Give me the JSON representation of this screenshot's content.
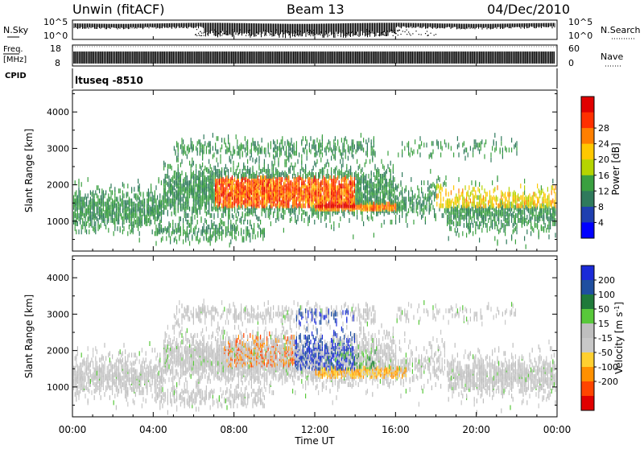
{
  "header": {
    "station": "Unwin (fitACF)",
    "beam": "Beam 13",
    "date": "04/Dec/2010"
  },
  "noise_panel": {
    "left_label": "N.Sky",
    "right_label": "N.Search",
    "ticks": [
      "10^5",
      "10^0"
    ]
  },
  "freq_panel": {
    "left_label_1": "Freq.",
    "left_label_2": "[MHz]",
    "left_ticks": [
      "18",
      "8"
    ],
    "right_label": "Nave",
    "right_ticks": [
      "60",
      "0"
    ],
    "cpid_label": "CPID"
  },
  "program_label": "ltuseq -8510",
  "colors": {
    "power": [
      "#0000ff",
      "#1f3fb0",
      "#2f7a5c",
      "#3aa040",
      "#b5d400",
      "#ffc800",
      "#ff7f00",
      "#ff3000",
      "#e00000"
    ],
    "velocity": [
      "#1a2ad8",
      "#1f4fa0",
      "#1f7a3a",
      "#58c83a",
      "#bfbfbf",
      "#c8c8c8",
      "#ffd030",
      "#ff9000",
      "#ff4500",
      "#e00000"
    ]
  },
  "chart_data": [
    {
      "type": "heatmap",
      "name": "power",
      "title": "",
      "ylabel": "Slant Range [km]",
      "xlabel": "",
      "ylim": [
        180,
        4600
      ],
      "xlim_hours": [
        0,
        24
      ],
      "ytick_labels": [
        "1000",
        "2000",
        "3000",
        "4000"
      ],
      "colorbar_label": "Power [dB]",
      "colorbar_ticks": [
        "4",
        "8",
        "12",
        "16",
        "20",
        "24",
        "28"
      ],
      "colorbar_range": [
        0,
        32
      ]
    },
    {
      "type": "heatmap",
      "name": "velocity",
      "title": "",
      "ylabel": "Slant Range [km]",
      "xlabel": "Time UT",
      "ylim": [
        180,
        4600
      ],
      "xlim_hours": [
        0,
        24
      ],
      "ytick_labels": [
        "1000",
        "2000",
        "3000",
        "4000"
      ],
      "xtick_labels": [
        "00:00",
        "04:00",
        "08:00",
        "12:00",
        "16:00",
        "20:00",
        "00:00"
      ],
      "colorbar_label": "Velocity [m s^-1]",
      "colorbar_ticks": [
        "200",
        "100",
        "50",
        "15",
        "-15",
        "-50",
        "-100",
        "-200"
      ]
    }
  ]
}
